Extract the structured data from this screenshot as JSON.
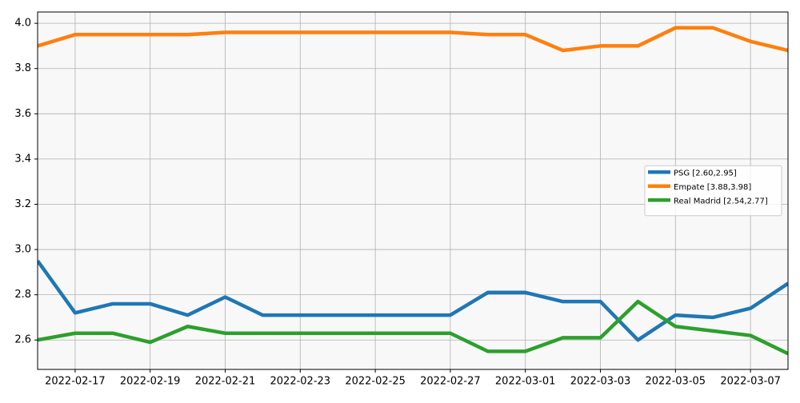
{
  "chart_data": {
    "type": "line",
    "x": [
      "2022-02-16",
      "2022-02-17",
      "2022-02-18",
      "2022-02-19",
      "2022-02-20",
      "2022-02-21",
      "2022-02-22",
      "2022-02-23",
      "2022-02-24",
      "2022-02-25",
      "2022-02-26",
      "2022-02-27",
      "2022-02-28",
      "2022-03-01",
      "2022-03-02",
      "2022-03-03",
      "2022-03-04",
      "2022-03-05",
      "2022-03-06",
      "2022-03-07",
      "2022-03-08"
    ],
    "series": [
      {
        "name": "PSG [2.60,2.95]",
        "color": "#1f77b4",
        "values": [
          2.95,
          2.72,
          2.76,
          2.76,
          2.71,
          2.79,
          2.71,
          2.71,
          2.71,
          2.71,
          2.71,
          2.71,
          2.81,
          2.81,
          2.77,
          2.77,
          2.6,
          2.71,
          2.7,
          2.74,
          2.85
        ]
      },
      {
        "name": "Empate [3.88,3.98]",
        "color": "#ff7f0e",
        "values": [
          3.9,
          3.95,
          3.95,
          3.95,
          3.95,
          3.96,
          3.96,
          3.96,
          3.96,
          3.96,
          3.96,
          3.96,
          3.95,
          3.95,
          3.88,
          3.9,
          3.9,
          3.98,
          3.98,
          3.92,
          3.88
        ]
      },
      {
        "name": "Real Madrid [2.54,2.77]",
        "color": "#2ca02c",
        "values": [
          2.6,
          2.63,
          2.63,
          2.59,
          2.66,
          2.63,
          2.63,
          2.63,
          2.63,
          2.63,
          2.63,
          2.63,
          2.55,
          2.55,
          2.61,
          2.61,
          2.77,
          2.66,
          2.64,
          2.62,
          2.54
        ]
      }
    ],
    "xlim": [
      "2022-02-16",
      "2022-03-08"
    ],
    "xticks": [
      "2022-02-17",
      "2022-02-19",
      "2022-02-21",
      "2022-02-23",
      "2022-02-25",
      "2022-02-27",
      "2022-03-01",
      "2022-03-03",
      "2022-03-05",
      "2022-03-07"
    ],
    "ylim": [
      2.47,
      4.05
    ],
    "yticks": [
      2.6,
      2.8,
      {
        "value": 3,
        "label": "3.0"
      },
      3.2,
      3.4,
      3.6,
      3.8,
      {
        "value": 4,
        "label": "4.0"
      }
    ],
    "grid": true,
    "legend": "center right"
  }
}
